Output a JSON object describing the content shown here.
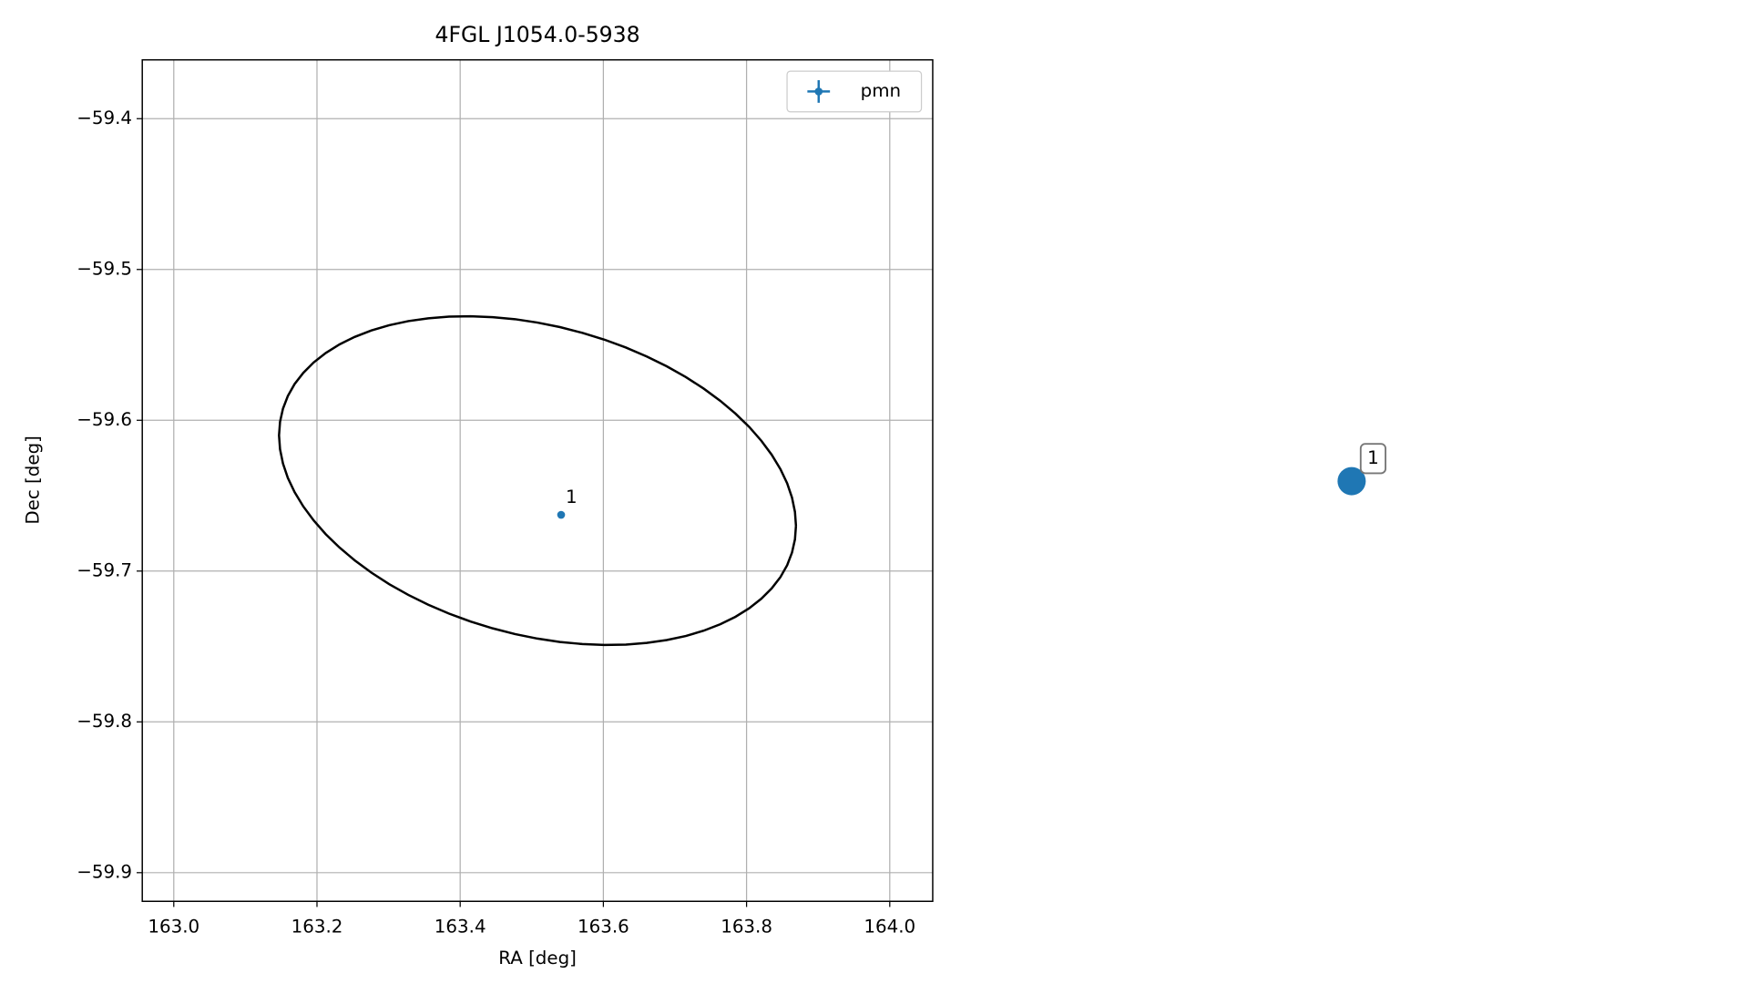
{
  "chart_data": [
    {
      "type": "scatter",
      "title": "4FGL J1054.0-5938",
      "xlabel": "RA [deg]",
      "ylabel": "Dec [deg]",
      "xlim": [
        162.956,
        164.06
      ],
      "ylim": [
        -59.919,
        -59.361
      ],
      "xticks": [
        {
          "value": 163.0,
          "label": "163.0"
        },
        163.2,
        163.4,
        163.6,
        163.8,
        {
          "value": 164.0,
          "label": "164.0"
        }
      ],
      "yticks": [
        {
          "value": -59.9,
          "label": "−59.9"
        },
        {
          "value": -59.8,
          "label": "−59.8"
        },
        {
          "value": -59.7,
          "label": "−59.7"
        },
        {
          "value": -59.6,
          "label": "−59.6"
        },
        {
          "value": -59.5,
          "label": "−59.5"
        },
        {
          "value": -59.4,
          "label": "−59.4"
        }
      ],
      "grid": true,
      "legend": "upper right",
      "series": [
        {
          "name": "pmn",
          "color": "#1f77b4",
          "x": [
            163.541
          ],
          "values": [
            -59.6627
          ],
          "labels": [
            "1"
          ]
        }
      ],
      "ellipse": {
        "ra": 163.508,
        "dec": -59.64,
        "ra_halfwidth": 0.361,
        "dec_halfheight": 0.109,
        "correlation": -0.275,
        "color": "#000000"
      }
    },
    {
      "type": "marker",
      "labels": [
        "1"
      ],
      "color": "#1f77b4"
    }
  ]
}
